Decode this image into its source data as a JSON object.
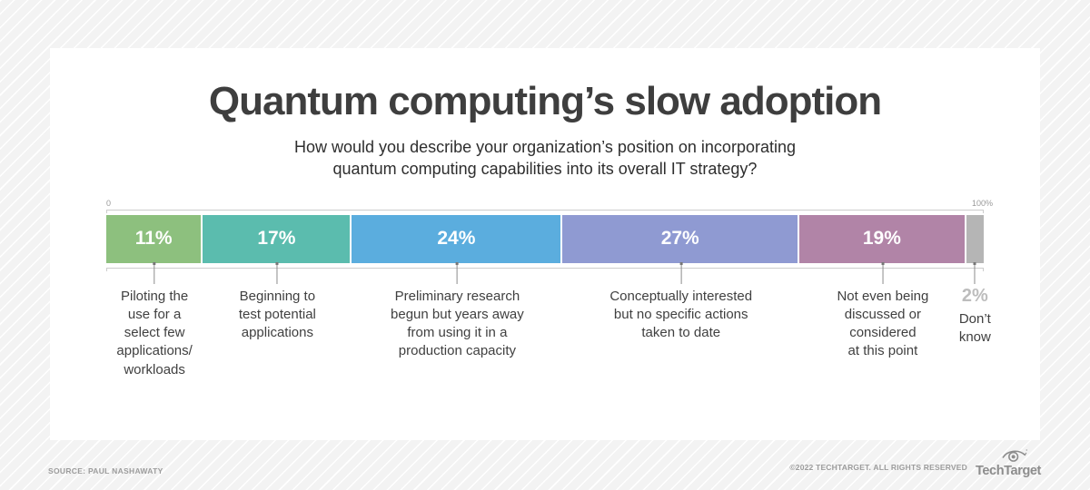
{
  "title": "Quantum computing’s slow adoption",
  "subtitle": "How would you describe your organization’s position on incorporating\nquantum computing capabilities into its overall IT strategy?",
  "axis": {
    "start_label": "0",
    "end_label": "100%"
  },
  "chart_data": {
    "type": "bar",
    "subtype": "horizontal-stacked-percentage",
    "title": "Quantum computing’s slow adoption",
    "question": "How would you describe your organization’s position on incorporating quantum computing capabilities into its overall IT strategy?",
    "unit": "%",
    "xlim": [
      0,
      100
    ],
    "categories": [
      "Piloting the use for a select few applications/workloads",
      "Beginning to test potential applications",
      "Preliminary research begun but years away from using it in a production capacity",
      "Conceptually interested but no specific actions taken to date",
      "Not even being discussed or considered at this point",
      "Don’t know"
    ],
    "values": [
      11,
      17,
      24,
      27,
      19,
      2
    ],
    "segments": [
      {
        "value": 11,
        "value_label": "11%",
        "color": "#8dc07e",
        "value_inside": true,
        "display_label": "Piloting the\nuse for a\nselect few\napplications/\nworkloads"
      },
      {
        "value": 17,
        "value_label": "17%",
        "color": "#5bbcae",
        "value_inside": true,
        "display_label": "Beginning to\ntest potential\napplications"
      },
      {
        "value": 24,
        "value_label": "24%",
        "color": "#5badde",
        "value_inside": true,
        "display_label": "Preliminary research\nbegun but years away\nfrom using it in a\nproduction capacity"
      },
      {
        "value": 27,
        "value_label": "27%",
        "color": "#8f9ad2",
        "value_inside": true,
        "display_label": "Conceptually interested\nbut no specific actions\ntaken to date"
      },
      {
        "value": 19,
        "value_label": "19%",
        "color": "#b184a7",
        "value_inside": true,
        "display_label": "Not even being\ndiscussed or\nconsidered\nat this point"
      },
      {
        "value": 2,
        "value_label": "2%",
        "color": "#b5b5b5",
        "value_inside": false,
        "display_label": "Don’t\nknow"
      }
    ]
  },
  "footer": {
    "source": "SOURCE: PAUL NASHAWATY",
    "copyright": "©2022 TECHTARGET. ALL RIGHTS RESERVED",
    "logo_text": "TechTarget"
  }
}
